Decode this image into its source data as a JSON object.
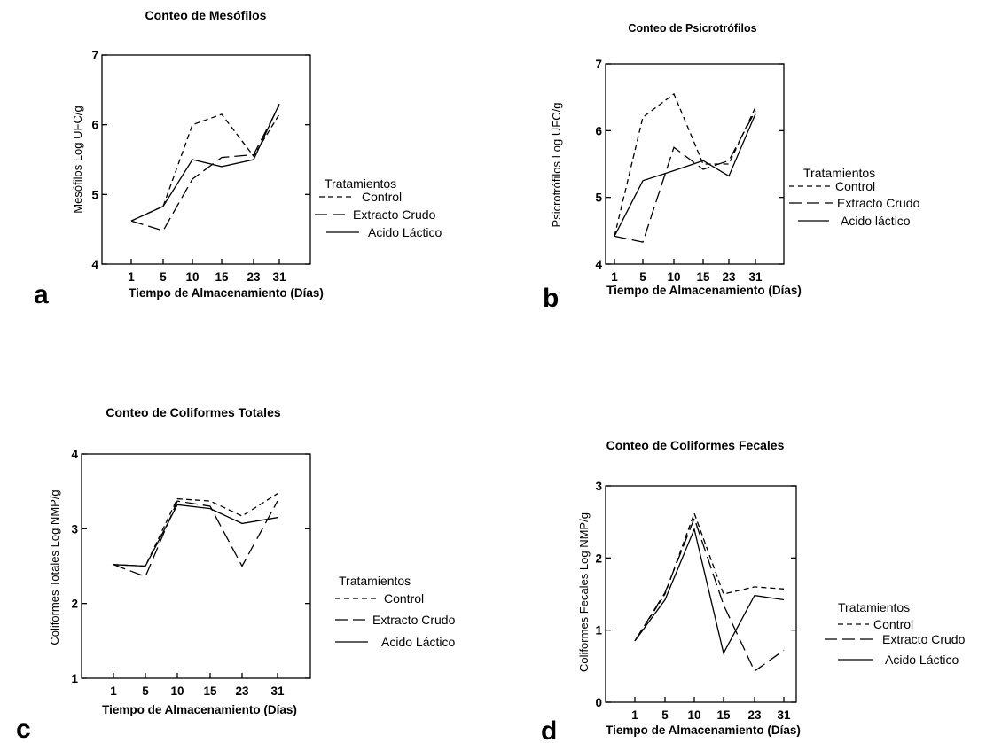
{
  "line_styles": {
    "Control": "6,4",
    "Extracto Crudo": "14,6",
    "Acido Láctico": ""
  },
  "chart_data": [
    {
      "panel": "a",
      "type": "line",
      "title": "Conteo de Mesófilos",
      "xlabel": "Tiempo de Almacenamiento (Días)",
      "ylabel": "Mesófilos Log UFC/g",
      "categories": [
        "1",
        "5",
        "10",
        "15",
        "23",
        "31"
      ],
      "ylim": [
        4,
        7
      ],
      "yticks": [
        4,
        5,
        6,
        7
      ],
      "legend_title": "Tratamientos",
      "legend_labels": [
        "Control",
        "Extracto Crudo",
        "Acido Láctico"
      ],
      "series": [
        {
          "name": "Control",
          "style": "Control",
          "values": [
            4.62,
            4.83,
            6.0,
            6.15,
            5.55,
            6.15
          ]
        },
        {
          "name": "Extracto Crudo",
          "style": "Extracto Crudo",
          "values": [
            4.62,
            4.48,
            5.22,
            5.53,
            5.57,
            6.28
          ]
        },
        {
          "name": "Acido Láctico",
          "style": "Acido Láctico",
          "values": [
            4.62,
            4.83,
            5.5,
            5.4,
            5.5,
            6.3
          ]
        }
      ]
    },
    {
      "panel": "b",
      "type": "line",
      "title": "Conteo de Psicrotrófilos",
      "xlabel": "Tiempo de Almacenamiento (Días)",
      "ylabel": "Psicrotrófilos Log UFC/g",
      "categories": [
        "1",
        "5",
        "10",
        "15",
        "23",
        "31"
      ],
      "ylim": [
        4,
        7
      ],
      "yticks": [
        4,
        5,
        6,
        7
      ],
      "legend_title": "Tratamientos",
      "legend_labels": [
        "Control",
        "Extracto Crudo",
        "Acido láctico"
      ],
      "series": [
        {
          "name": "Control",
          "style": "Control",
          "values": [
            4.42,
            6.2,
            6.55,
            5.5,
            5.5,
            6.35
          ]
        },
        {
          "name": "Extracto Crudo",
          "style": "Extracto Crudo",
          "values": [
            4.42,
            4.33,
            5.75,
            5.42,
            5.55,
            6.3
          ]
        },
        {
          "name": "Acido láctico",
          "style": "Acido Láctico",
          "values": [
            4.42,
            5.25,
            5.4,
            5.55,
            5.32,
            6.25
          ]
        }
      ]
    },
    {
      "panel": "c",
      "type": "line",
      "title": "Conteo de Coliformes Totales",
      "xlabel": "Tiempo de Almacenamiento (Días)",
      "ylabel": "Coliformes Totales Log NMP/g",
      "categories": [
        "1",
        "5",
        "10",
        "15",
        "23",
        "31"
      ],
      "ylim": [
        1,
        4
      ],
      "yticks": [
        1,
        2,
        3,
        4
      ],
      "legend_title": "Tratamientos",
      "legend_labels": [
        "Control",
        "Extracto Crudo",
        "Acido Láctico"
      ],
      "series": [
        {
          "name": "Control",
          "style": "Control",
          "values": [
            2.52,
            2.5,
            3.4,
            3.37,
            3.17,
            3.47
          ]
        },
        {
          "name": "Extracto Crudo",
          "style": "Extracto Crudo",
          "values": [
            2.52,
            2.36,
            3.37,
            3.3,
            2.5,
            3.37
          ]
        },
        {
          "name": "Acido Láctico",
          "style": "Acido Láctico",
          "values": [
            2.52,
            2.5,
            3.32,
            3.27,
            3.07,
            3.15
          ]
        }
      ]
    },
    {
      "panel": "d",
      "type": "line",
      "title": "Conteo de Coliformes Fecales",
      "xlabel": "Tiempo de Almacenamiento (Días)",
      "ylabel": "Coliformes Fecales Log NMP/g",
      "categories": [
        "1",
        "5",
        "10",
        "15",
        "23",
        "31"
      ],
      "ylim": [
        0,
        3
      ],
      "yticks": [
        0,
        1,
        2,
        3
      ],
      "legend_title": "Tratamientos",
      "legend_labels": [
        "Control",
        "Extracto Crudo",
        "Acido Láctico"
      ],
      "series": [
        {
          "name": "Control",
          "style": "Control",
          "values": [
            0.85,
            1.5,
            2.62,
            1.5,
            1.6,
            1.57
          ]
        },
        {
          "name": "Extracto Crudo",
          "style": "Extracto Crudo",
          "values": [
            0.85,
            1.52,
            2.55,
            1.35,
            0.43,
            0.72
          ]
        },
        {
          "name": "Acido Láctico",
          "style": "Acido Láctico",
          "values": [
            0.85,
            1.42,
            2.4,
            0.68,
            1.48,
            1.42
          ]
        }
      ]
    }
  ]
}
